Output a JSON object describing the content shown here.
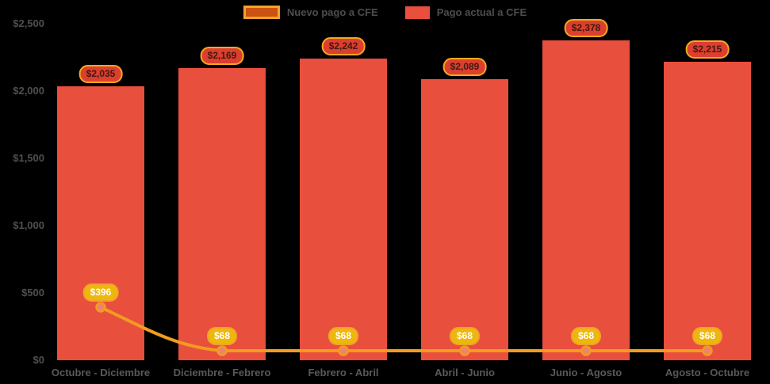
{
  "colors": {
    "background": "#000000",
    "bar": "#e84f3d",
    "line": "#f29c1f",
    "line_point_fill": "#ee8372",
    "bar_label_bg": "#dc3f2f",
    "bar_label_border": "#f2a91c",
    "line_label_bg": "#eeb70d",
    "line_label_text": "#ffffff",
    "axis_text": "#595959",
    "legend_text": "#4d4d4d",
    "legend_line_swatch_fill": "#cc5211",
    "legend_line_swatch_border": "#f1a42c"
  },
  "legend": {
    "items": [
      {
        "label": "Nuevo pago a CFE",
        "series": "line"
      },
      {
        "label": "Pago actual a CFE",
        "series": "bar"
      }
    ]
  },
  "chart_data": {
    "type": "bar",
    "subtype": "bar-with-line-combo",
    "title": "",
    "xlabel": "",
    "ylabel": "",
    "categories": [
      "Octubre - Diciembre",
      "Diciembre - Febrero",
      "Febrero - Abril",
      "Abril - Junio",
      "Junio - Agosto",
      "Agosto - Octubre"
    ],
    "series": [
      {
        "name": "Pago actual a CFE",
        "type": "bar",
        "color": "#e84f3d",
        "values": [
          2035,
          2169,
          2242,
          2089,
          2378,
          2215
        ],
        "data_labels": [
          "$2,035",
          "$2,169",
          "$2,242",
          "$2,089",
          "$2,378",
          "$2,215"
        ]
      },
      {
        "name": "Nuevo pago a CFE",
        "type": "line",
        "color": "#f29c1f",
        "values": [
          396,
          68,
          68,
          68,
          68,
          68
        ],
        "data_labels": [
          "$396",
          "$68",
          "$68",
          "$68",
          "$68",
          "$68"
        ]
      }
    ],
    "ylim": [
      0,
      2500
    ],
    "y_ticks": [
      0,
      500,
      1000,
      1500,
      2000,
      2500
    ],
    "y_tick_labels": [
      "$0",
      "$500",
      "$1,000",
      "$1,500",
      "$2,000",
      "$2,500"
    ],
    "grid": false,
    "legend_position": "top-center"
  }
}
